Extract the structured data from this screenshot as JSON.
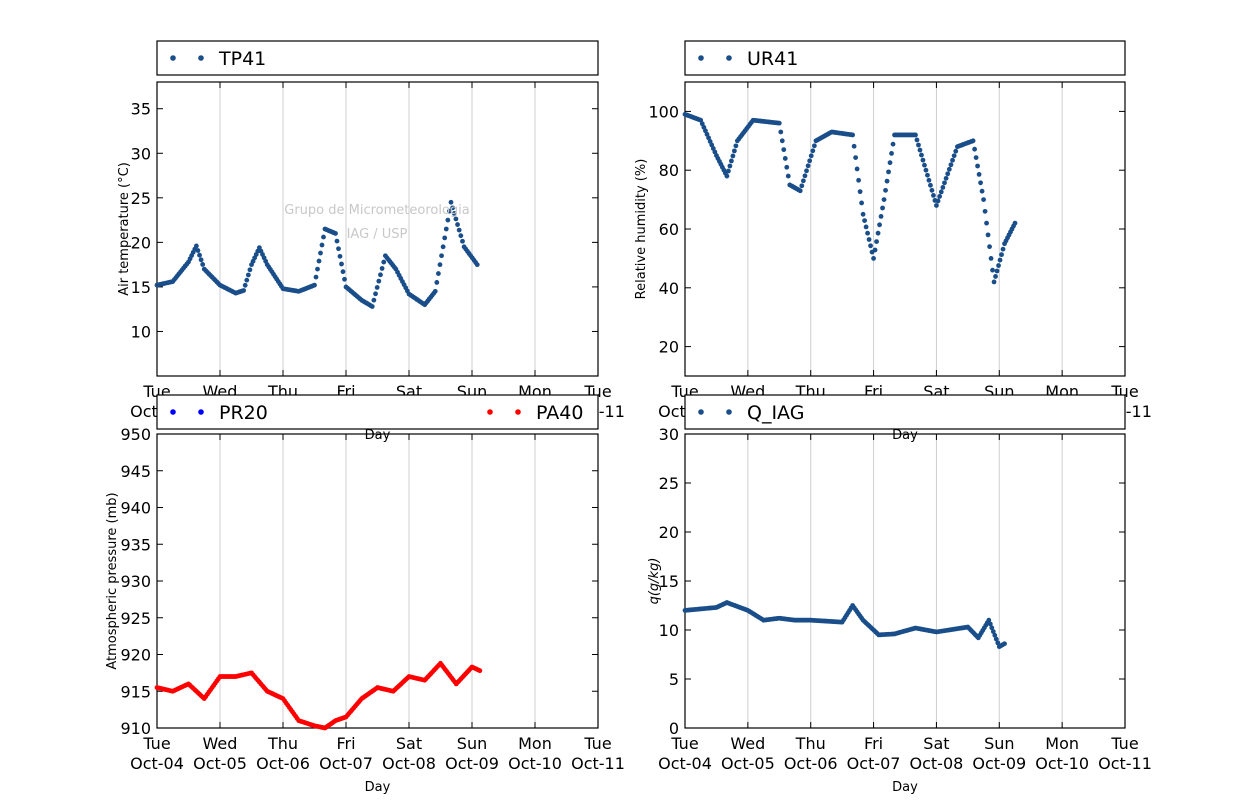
{
  "x_axis": {
    "days": [
      "Tue",
      "Wed",
      "Thu",
      "Fri",
      "Sat",
      "Sun",
      "Mon",
      "Tue"
    ],
    "dates": [
      "Oct-04",
      "Oct-05",
      "Oct-06",
      "Oct-07",
      "Oct-08",
      "Oct-09",
      "Oct-10",
      "Oct-11"
    ],
    "label": "Day"
  },
  "watermark": {
    "line1": "Grupo de Micrometeorologia",
    "line2": "IAG / USP"
  },
  "colors": {
    "navy": "#1a4e8a",
    "red": "#ff0000",
    "blue": "#0000ff",
    "grid": "#cfcfcf"
  },
  "chart_data": [
    {
      "type": "scatter",
      "ylabel": "Air temperature (°C)",
      "ylim": [
        5,
        38
      ],
      "yticks": [
        10,
        15,
        20,
        25,
        30,
        35
      ],
      "xlim": [
        "2016-10-04",
        "2016-10-11"
      ],
      "grid": "vertical",
      "legend": "top",
      "series": [
        {
          "name": "TP41",
          "color": "#1a4e8a",
          "points": [
            [
              "2016-10-04T00:00",
              15.2
            ],
            [
              "2016-10-04T06:00",
              15.6
            ],
            [
              "2016-10-04T12:00",
              17.8
            ],
            [
              "2016-10-04T15:00",
              19.6
            ],
            [
              "2016-10-04T18:00",
              17.0
            ],
            [
              "2016-10-05T00:00",
              15.2
            ],
            [
              "2016-10-05T06:00",
              14.3
            ],
            [
              "2016-10-05T09:00",
              14.6
            ],
            [
              "2016-10-05T12:00",
              17.5
            ],
            [
              "2016-10-05T15:00",
              19.4
            ],
            [
              "2016-10-05T18:00",
              17.5
            ],
            [
              "2016-10-06T00:00",
              14.8
            ],
            [
              "2016-10-06T06:00",
              14.5
            ],
            [
              "2016-10-06T12:00",
              15.2
            ],
            [
              "2016-10-06T16:00",
              21.5
            ],
            [
              "2016-10-06T20:00",
              21.0
            ],
            [
              "2016-10-07T00:00",
              15.0
            ],
            [
              "2016-10-07T06:00",
              13.5
            ],
            [
              "2016-10-07T10:00",
              12.8
            ],
            [
              "2016-10-07T15:00",
              18.5
            ],
            [
              "2016-10-07T19:00",
              17.0
            ],
            [
              "2016-10-08T00:00",
              14.2
            ],
            [
              "2016-10-08T06:00",
              13.0
            ],
            [
              "2016-10-08T10:00",
              14.5
            ],
            [
              "2016-10-08T16:00",
              24.5
            ],
            [
              "2016-10-08T21:00",
              19.5
            ],
            [
              "2016-10-09T02:00",
              17.5
            ]
          ]
        }
      ]
    },
    {
      "type": "scatter",
      "ylabel": "Relative humidity (%)",
      "ylim": [
        10,
        110
      ],
      "yticks": [
        20,
        40,
        60,
        80,
        100
      ],
      "xlim": [
        "2016-10-04",
        "2016-10-11"
      ],
      "grid": "vertical",
      "legend": "top",
      "series": [
        {
          "name": "UR41",
          "color": "#1a4e8a",
          "points": [
            [
              "2016-10-04T00:00",
              99
            ],
            [
              "2016-10-04T06:00",
              97
            ],
            [
              "2016-10-04T12:00",
              85
            ],
            [
              "2016-10-04T16:00",
              78
            ],
            [
              "2016-10-04T20:00",
              90
            ],
            [
              "2016-10-05T02:00",
              97
            ],
            [
              "2016-10-05T12:00",
              96
            ],
            [
              "2016-10-05T16:00",
              75
            ],
            [
              "2016-10-05T20:00",
              73
            ],
            [
              "2016-10-06T02:00",
              90
            ],
            [
              "2016-10-06T08:00",
              93
            ],
            [
              "2016-10-06T16:00",
              92
            ],
            [
              "2016-10-06T20:00",
              65
            ],
            [
              "2016-10-07T00:00",
              50
            ],
            [
              "2016-10-07T04:00",
              70
            ],
            [
              "2016-10-07T08:00",
              92
            ],
            [
              "2016-10-07T16:00",
              92
            ],
            [
              "2016-10-07T20:00",
              80
            ],
            [
              "2016-10-08T00:00",
              68
            ],
            [
              "2016-10-08T08:00",
              88
            ],
            [
              "2016-10-08T14:00",
              90
            ],
            [
              "2016-10-08T18:00",
              70
            ],
            [
              "2016-10-08T22:00",
              42
            ],
            [
              "2016-10-09T02:00",
              55
            ],
            [
              "2016-10-09T06:00",
              62
            ]
          ]
        }
      ]
    },
    {
      "type": "scatter",
      "ylabel": "Atmospheric pressure (mb)",
      "ylim": [
        910,
        950
      ],
      "yticks": [
        910,
        915,
        920,
        925,
        930,
        935,
        940,
        945,
        950
      ],
      "xlim": [
        "2016-10-04",
        "2016-10-11"
      ],
      "grid": "vertical",
      "legend": "top",
      "series": [
        {
          "name": "PR20",
          "color": "#0000ff",
          "points": []
        },
        {
          "name": "PA40",
          "color": "#ff0000",
          "points": [
            [
              "2016-10-04T00:00",
              915.5
            ],
            [
              "2016-10-04T06:00",
              915.0
            ],
            [
              "2016-10-04T12:00",
              916.0
            ],
            [
              "2016-10-04T18:00",
              914.0
            ],
            [
              "2016-10-05T00:00",
              917.0
            ],
            [
              "2016-10-05T06:00",
              917.0
            ],
            [
              "2016-10-05T12:00",
              917.5
            ],
            [
              "2016-10-05T18:00",
              915.0
            ],
            [
              "2016-10-06T00:00",
              914.0
            ],
            [
              "2016-10-06T06:00",
              911.0
            ],
            [
              "2016-10-06T12:00",
              910.3
            ],
            [
              "2016-10-06T16:00",
              910.0
            ],
            [
              "2016-10-06T20:00",
              911.0
            ],
            [
              "2016-10-07T00:00",
              911.5
            ],
            [
              "2016-10-07T06:00",
              914.0
            ],
            [
              "2016-10-07T12:00",
              915.5
            ],
            [
              "2016-10-07T18:00",
              915.0
            ],
            [
              "2016-10-08T00:00",
              917.0
            ],
            [
              "2016-10-08T06:00",
              916.5
            ],
            [
              "2016-10-08T12:00",
              918.8
            ],
            [
              "2016-10-08T18:00",
              916.0
            ],
            [
              "2016-10-09T00:00",
              918.3
            ],
            [
              "2016-10-09T03:00",
              917.8
            ]
          ]
        }
      ]
    },
    {
      "type": "scatter",
      "ylabel": "q(g/kg)",
      "ylim": [
        0,
        30
      ],
      "yticks": [
        0,
        5,
        10,
        15,
        20,
        25,
        30
      ],
      "xlim": [
        "2016-10-04",
        "2016-10-11"
      ],
      "grid": "vertical",
      "legend": "top",
      "series": [
        {
          "name": "Q_IAG",
          "color": "#1a4e8a",
          "points": [
            [
              "2016-10-04T00:00",
              12.0
            ],
            [
              "2016-10-04T12:00",
              12.3
            ],
            [
              "2016-10-04T16:00",
              12.8
            ],
            [
              "2016-10-05T00:00",
              12.0
            ],
            [
              "2016-10-05T06:00",
              11.0
            ],
            [
              "2016-10-05T12:00",
              11.2
            ],
            [
              "2016-10-05T18:00",
              11.0
            ],
            [
              "2016-10-06T00:00",
              11.0
            ],
            [
              "2016-10-06T12:00",
              10.8
            ],
            [
              "2016-10-06T16:00",
              12.5
            ],
            [
              "2016-10-06T20:00",
              11.0
            ],
            [
              "2016-10-07T02:00",
              9.5
            ],
            [
              "2016-10-07T08:00",
              9.6
            ],
            [
              "2016-10-07T16:00",
              10.2
            ],
            [
              "2016-10-08T00:00",
              9.8
            ],
            [
              "2016-10-08T12:00",
              10.3
            ],
            [
              "2016-10-08T16:00",
              9.2
            ],
            [
              "2016-10-08T20:00",
              11.0
            ],
            [
              "2016-10-09T00:00",
              8.3
            ],
            [
              "2016-10-09T02:00",
              8.6
            ]
          ]
        }
      ]
    }
  ]
}
